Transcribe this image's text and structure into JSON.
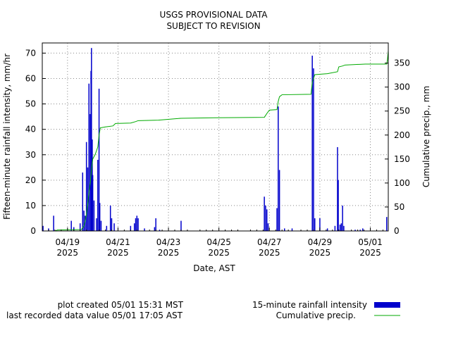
{
  "chart_data": {
    "type": "bar",
    "title": [
      "USGS PROVISIONAL DATA",
      "SUBJECT TO REVISION"
    ],
    "xlabel": "Date, AST",
    "ylabel": "Fifteen-minute rainfall intensity, mm/hr",
    "y2label": "Cumulative precip., mm",
    "ylim": [
      0,
      74
    ],
    "y2lim": [
      0,
      392
    ],
    "yticks": [
      0,
      10,
      20,
      30,
      40,
      50,
      60,
      70
    ],
    "y2ticks": [
      0,
      50,
      100,
      150,
      200,
      250,
      300,
      350
    ],
    "x_range_days": [
      "04/18 00:00",
      "05/01 17:05"
    ],
    "x_ticks": [
      {
        "day": 1,
        "label1": "04/19",
        "label2": "2025"
      },
      {
        "day": 3,
        "label1": "04/21",
        "label2": "2025"
      },
      {
        "day": 5,
        "label1": "04/23",
        "label2": "2025"
      },
      {
        "day": 7,
        "label1": "04/25",
        "label2": "2025"
      },
      {
        "day": 9,
        "label1": "04/27",
        "label2": "2025"
      },
      {
        "day": 11,
        "label1": "04/29",
        "label2": "2025"
      },
      {
        "day": 13,
        "label1": "05/01",
        "label2": "2025"
      }
    ],
    "grid": true,
    "series": [
      {
        "name": "15-minute rainfall intensity",
        "kind": "bar",
        "color": "#0000cc",
        "axis": "left",
        "points": [
          [
            0.03,
            2
          ],
          [
            0.25,
            1
          ],
          [
            0.45,
            6
          ],
          [
            1.15,
            4
          ],
          [
            1.25,
            1.5
          ],
          [
            1.5,
            3
          ],
          [
            1.6,
            23
          ],
          [
            1.65,
            8
          ],
          [
            1.7,
            6
          ],
          [
            1.75,
            35
          ],
          [
            1.8,
            25
          ],
          [
            1.85,
            58
          ],
          [
            1.9,
            46
          ],
          [
            1.93,
            63
          ],
          [
            1.95,
            72
          ],
          [
            1.98,
            36
          ],
          [
            2.0,
            22
          ],
          [
            2.05,
            12
          ],
          [
            2.15,
            5
          ],
          [
            2.2,
            28
          ],
          [
            2.25,
            56
          ],
          [
            2.28,
            11
          ],
          [
            2.33,
            4
          ],
          [
            2.55,
            2
          ],
          [
            2.7,
            10
          ],
          [
            2.75,
            5
          ],
          [
            2.85,
            3
          ],
          [
            3.5,
            2
          ],
          [
            3.65,
            3
          ],
          [
            3.7,
            5
          ],
          [
            3.75,
            6
          ],
          [
            3.8,
            5
          ],
          [
            4.05,
            1
          ],
          [
            4.45,
            1.5
          ],
          [
            4.5,
            5
          ],
          [
            4.65,
            0.5
          ],
          [
            5.5,
            4
          ],
          [
            8.8,
            13.5
          ],
          [
            8.85,
            10
          ],
          [
            8.9,
            8.5
          ],
          [
            8.95,
            3
          ],
          [
            9.3,
            9
          ],
          [
            9.35,
            49
          ],
          [
            9.4,
            24
          ],
          [
            9.6,
            1
          ],
          [
            9.9,
            1
          ],
          [
            10.7,
            69
          ],
          [
            10.75,
            64
          ],
          [
            10.8,
            5
          ],
          [
            11.0,
            5
          ],
          [
            11.3,
            1
          ],
          [
            11.6,
            2
          ],
          [
            11.7,
            33
          ],
          [
            11.73,
            20
          ],
          [
            11.8,
            2.5
          ],
          [
            11.85,
            3
          ],
          [
            11.9,
            10
          ],
          [
            11.95,
            2
          ],
          [
            12.4,
            0.5
          ],
          [
            12.6,
            0.5
          ],
          [
            12.7,
            1
          ],
          [
            13.65,
            5.5
          ]
        ]
      },
      {
        "name": "Cumulative precip.",
        "kind": "line",
        "color": "#00aa00",
        "axis": "right",
        "points": [
          [
            0.0,
            0
          ],
          [
            0.5,
            0
          ],
          [
            0.6,
            2
          ],
          [
            1.55,
            3
          ],
          [
            1.65,
            10
          ],
          [
            1.7,
            20
          ],
          [
            1.75,
            35
          ],
          [
            1.8,
            55
          ],
          [
            1.85,
            80
          ],
          [
            1.9,
            100
          ],
          [
            1.95,
            130
          ],
          [
            2.0,
            150
          ],
          [
            2.1,
            160
          ],
          [
            2.2,
            175
          ],
          [
            2.25,
            200
          ],
          [
            2.3,
            215
          ],
          [
            2.5,
            217
          ],
          [
            2.8,
            219
          ],
          [
            2.9,
            224
          ],
          [
            3.5,
            225
          ],
          [
            3.7,
            228
          ],
          [
            3.8,
            230
          ],
          [
            4.6,
            231
          ],
          [
            5.5,
            235
          ],
          [
            6.8,
            236
          ],
          [
            8.8,
            237
          ],
          [
            8.9,
            245
          ],
          [
            9.0,
            252
          ],
          [
            9.3,
            253
          ],
          [
            9.35,
            270
          ],
          [
            9.4,
            280
          ],
          [
            9.5,
            284
          ],
          [
            10.65,
            285
          ],
          [
            10.7,
            310
          ],
          [
            10.75,
            318
          ],
          [
            10.8,
            326
          ],
          [
            11.3,
            328
          ],
          [
            11.7,
            332
          ],
          [
            11.75,
            342
          ],
          [
            11.9,
            344
          ],
          [
            12.0,
            346
          ],
          [
            12.8,
            348
          ],
          [
            13.65,
            348
          ],
          [
            13.68,
            358
          ],
          [
            13.71,
            375
          ]
        ]
      }
    ]
  },
  "footer": {
    "created": "plot created 05/01 15:31 MST",
    "last_value": "last recorded data value 05/01 17:05 AST"
  },
  "legend": {
    "bar_label": "15-minute rainfall intensity",
    "line_label": "Cumulative precip."
  }
}
